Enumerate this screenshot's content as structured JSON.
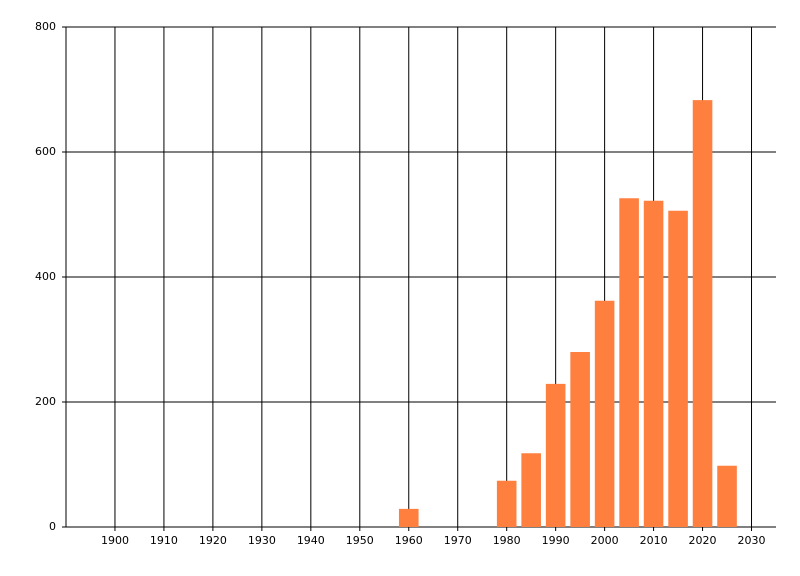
{
  "chart_data": {
    "type": "bar",
    "x": [
      1960,
      1980,
      1985,
      1990,
      1995,
      2000,
      2005,
      2010,
      2015,
      2020,
      2025
    ],
    "values": [
      29,
      74,
      118,
      229,
      280,
      362,
      526,
      522,
      506,
      683,
      98
    ],
    "color": "#ff7f3f",
    "xlim": [
      1890,
      2035
    ],
    "xticks": [
      1900,
      1910,
      1920,
      1930,
      1940,
      1950,
      1960,
      1970,
      1980,
      1990,
      2000,
      2010,
      2020,
      2030
    ],
    "ylim": [
      0,
      800
    ],
    "yticks": [
      0,
      200,
      400,
      600,
      800
    ],
    "grid": true
  }
}
